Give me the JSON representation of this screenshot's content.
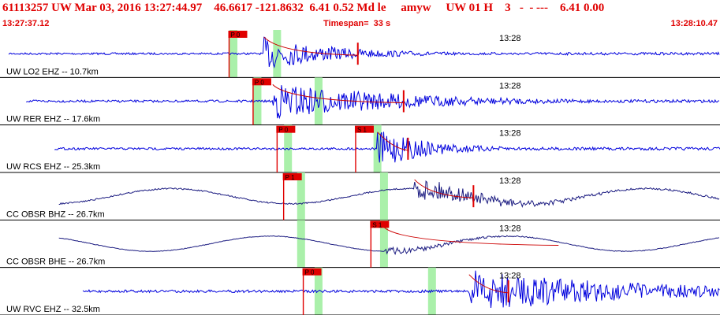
{
  "header": {
    "summary": "61113257 UW Mar 03, 2016 13:27:44.97    46.6617 -121.8632  6.41 0.52 Md le     amyw     UW 01 H    3   -  - ---    6.41 0.00",
    "start_time": "13:27:37.12",
    "timespan": "Timespan=  33 s",
    "end_time": "13:28:10.47"
  },
  "colors": {
    "header_text": "#e00000",
    "trace_blue": "#0000dd",
    "trace_navy": "#1a1a80",
    "pick": "#e00000",
    "window": "#aaf0aa",
    "curve": "#cc0000"
  },
  "chart_data": {
    "type": "line",
    "title": "61113257 UW Mar 03, 2016 13:27:44.97",
    "x_start": "13:27:37.12",
    "x_end": "13:28:10.47",
    "timespan_s": 33,
    "time_tick_label": "13:28",
    "traces": [
      {
        "label": "UW LO2 EHZ -- 10.7km",
        "color": "blue",
        "p_label": "P 0",
        "p_time": 10.5,
        "s_label": "",
        "s_time": null,
        "windows": [
          10.7,
          12.7
        ],
        "amp": 0.35,
        "lp": 0,
        "segment": [
          0.4,
          33.3
        ],
        "burst": 12.1,
        "decay": 3.5,
        "end_marker": 16.4
      },
      {
        "label": "UW RER EHZ -- 17.6km",
        "color": "blue",
        "p_label": "P 0",
        "p_time": 11.6,
        "s_label": "",
        "s_time": null,
        "windows": [
          11.8,
          14.6
        ],
        "amp": 0.4,
        "lp": 0,
        "segment": [
          1.2,
          34.4
        ],
        "burst": 12.5,
        "decay": 6.0,
        "end_marker": 18.5
      },
      {
        "label": "UW RCS EHZ -- 25.3km",
        "color": "blue",
        "p_label": "P 0",
        "p_time": 12.7,
        "s_label": "S 1",
        "s_time": 16.3,
        "windows": [
          13.2,
          17.3
        ],
        "amp": 0.4,
        "lp": 0,
        "segment": [
          2.5,
          35.7
        ],
        "burst": 17.3,
        "decay": 2.5,
        "end_marker": 18.7
      },
      {
        "label": "CC OBSR BHZ -- 26.7km",
        "color": "navy",
        "p_label": "P 1",
        "p_time": 13.0,
        "s_label": "",
        "s_time": null,
        "windows": [
          13.8,
          17.6
        ],
        "amp": 0.25,
        "lp": 1,
        "segment": [
          2.7,
          35.9
        ],
        "burst": 19.0,
        "decay": 4.0,
        "end_marker": 21.7
      },
      {
        "label": "CC OBSR BHE -- 26.7km",
        "color": "navy",
        "p_label": "",
        "p_time": null,
        "s_label": "S 1",
        "s_time": 17.0,
        "windows": [
          13.8,
          17.6
        ],
        "amp": 0.1,
        "lp": 1,
        "segment": [
          2.7,
          35.9
        ],
        "burst": 17.6,
        "decay": 3.0,
        "end_marker": null
      },
      {
        "label": "UW RVC EHZ -- 32.5km",
        "color": "blue",
        "p_label": "P 0",
        "p_time": 13.9,
        "s_label": "",
        "s_time": null,
        "windows": [
          14.6,
          19.8
        ],
        "amp": 0.45,
        "lp": 0,
        "segment": [
          3.8,
          37.0
        ],
        "burst": 21.5,
        "decay": 8.0,
        "end_marker": 23.3
      }
    ]
  }
}
